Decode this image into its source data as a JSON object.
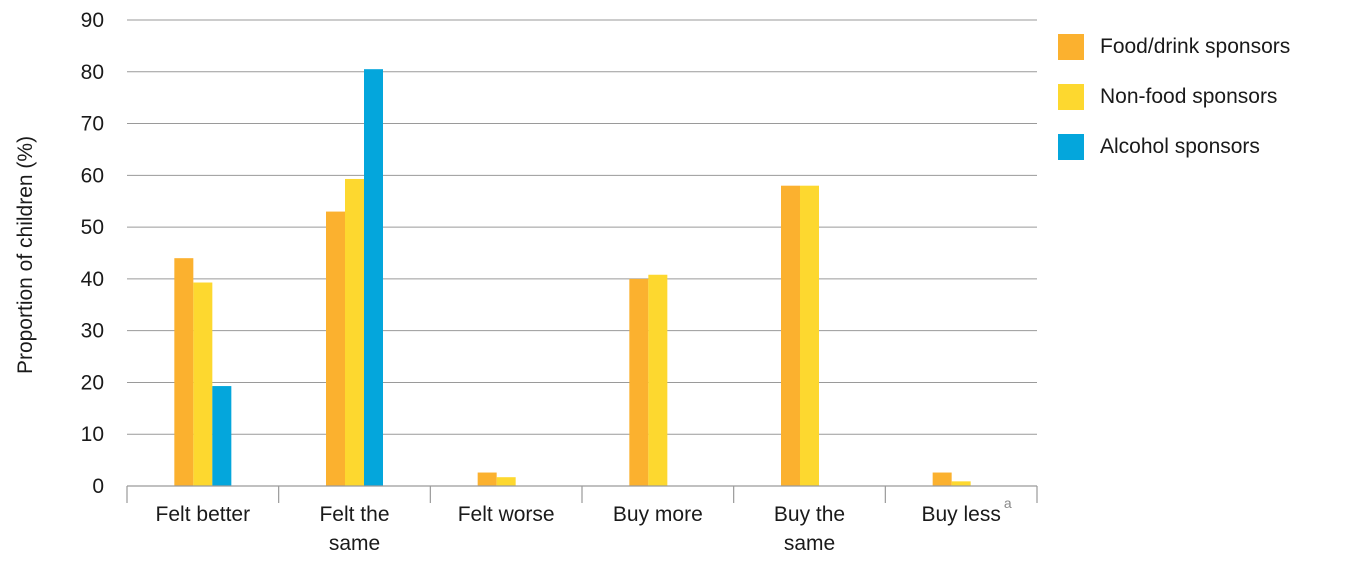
{
  "chart_data": {
    "type": "bar",
    "title": "",
    "xlabel": "",
    "ylabel": "Proportion of children (%)",
    "ylim": [
      0,
      90
    ],
    "yticks": [
      "0",
      "10",
      "20",
      "30",
      "40",
      "50",
      "60",
      "70",
      "80",
      "90"
    ],
    "grid": true,
    "legend_position": "top-right",
    "categories": [
      {
        "line1": "Felt better",
        "line2": ""
      },
      {
        "line1": "Felt the",
        "line2": "same"
      },
      {
        "line1": "Felt worse",
        "line2": ""
      },
      {
        "line1": "Buy more",
        "line2": ""
      },
      {
        "line1": "Buy the",
        "line2": "same"
      },
      {
        "line1": "Buy less",
        "line2": "",
        "superscript": "a"
      }
    ],
    "series": [
      {
        "name": "Food/drink sponsors",
        "color": "#FBB12F",
        "values": [
          44,
          53,
          2.6,
          40,
          58,
          2.6
        ]
      },
      {
        "name": "Non-food sponsors",
        "color": "#FDD82F",
        "values": [
          39.3,
          59.3,
          1.7,
          40.8,
          58,
          0.9
        ]
      },
      {
        "name": "Alcohol sponsors",
        "color": "#04A6DC",
        "values": [
          19.3,
          80.5,
          null,
          null,
          null,
          null
        ]
      }
    ]
  }
}
